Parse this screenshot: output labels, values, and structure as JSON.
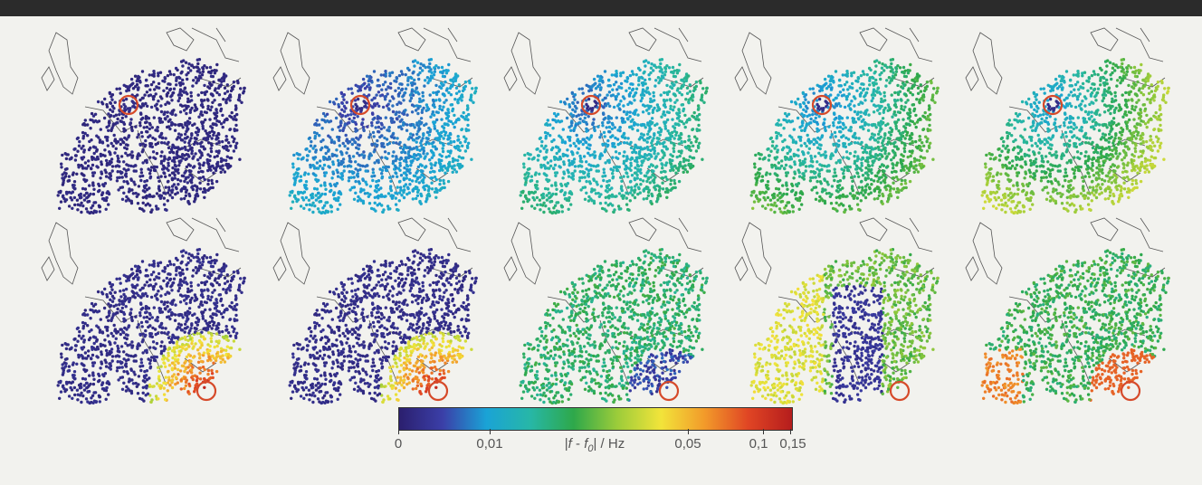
{
  "figure": {
    "panel_rows": 2,
    "panel_cols": 5,
    "rows": [
      {
        "highlight_location": "central Europe (Switzerland region)",
        "panels": [
          {
            "dominant": "deep blue",
            "spread": 0.02
          },
          {
            "dominant": "blue",
            "spread": 0.35
          },
          {
            "dominant": "teal",
            "spread": 0.55
          },
          {
            "dominant": "green",
            "spread": 0.7
          },
          {
            "dominant": "green",
            "spread": 0.85
          }
        ]
      },
      {
        "highlight_location": "southern Greece",
        "panels": [
          {
            "dominant": "deep blue with red south-east",
            "spread": 0.15
          },
          {
            "dominant": "deep blue with red south-east",
            "spread": 0.3
          },
          {
            "dominant": "teal",
            "spread": 0.5
          },
          {
            "dominant": "yellow-green",
            "spread": 0.7
          },
          {
            "dominant": "teal with orange Iberia",
            "spread": 0.85
          }
        ]
      }
    ],
    "highlight_color": "#d64a2a"
  },
  "colorbar": {
    "ticks": [
      "0",
      "0,01",
      "0,05",
      "0,1",
      "0,15"
    ],
    "label_prefix": "|",
    "label_f": "f",
    "label_minus": " - ",
    "label_f0": "f",
    "label_sub": "0",
    "label_suffix": "| / Hz",
    "colors": [
      "#2b1f6e",
      "#3b3fa8",
      "#1aa3d6",
      "#27b7a7",
      "#2ea84a",
      "#9ccc3a",
      "#f2e43a",
      "#f29a2a",
      "#e04524",
      "#b51d1d"
    ]
  }
}
